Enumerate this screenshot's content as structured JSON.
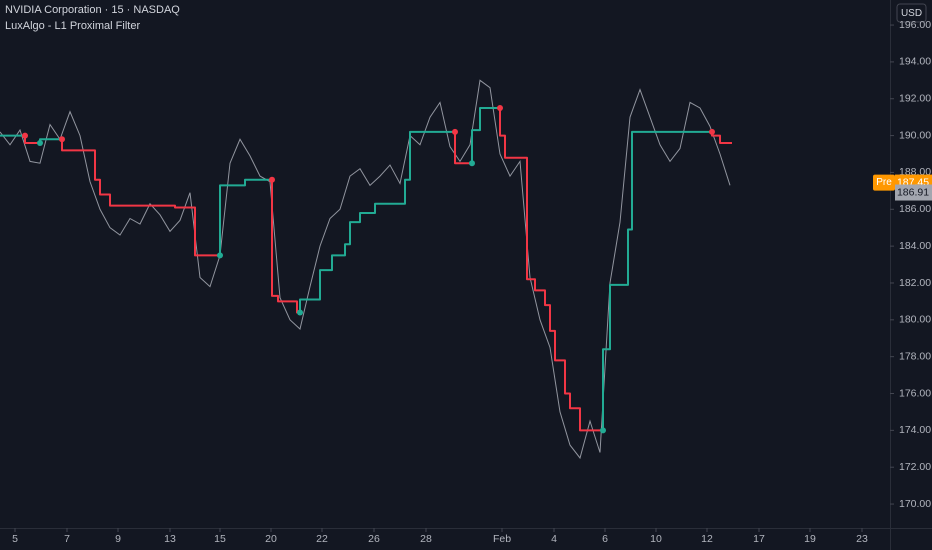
{
  "chart_data": {
    "type": "line",
    "title": "NVIDIA Corporation · 15 · NASDAQ",
    "subtitle": "LuxAlgo - L1 Proximal Filter",
    "currency": "USD",
    "pre_market": {
      "label": "Pre",
      "value": 187.45,
      "color": "#ff9800"
    },
    "last_price": 186.91,
    "xlim": [
      0,
      178
    ],
    "xticks": [
      {
        "value": 3,
        "label": "5"
      },
      {
        "value": 13.4,
        "label": "7"
      },
      {
        "value": 23.6,
        "label": "9"
      },
      {
        "value": 34,
        "label": "13"
      },
      {
        "value": 44,
        "label": "15"
      },
      {
        "value": 54.2,
        "label": "20"
      },
      {
        "value": 64.4,
        "label": "22"
      },
      {
        "value": 74.8,
        "label": "26"
      },
      {
        "value": 85.2,
        "label": "28"
      },
      {
        "value": 100.4,
        "label": "Feb"
      },
      {
        "value": 110.8,
        "label": "4"
      },
      {
        "value": 121,
        "label": "6"
      },
      {
        "value": 131.2,
        "label": "10"
      },
      {
        "value": 141.4,
        "label": "12"
      },
      {
        "value": 151.8,
        "label": "17"
      },
      {
        "value": 162,
        "label": "19"
      },
      {
        "value": 172.4,
        "label": "23"
      }
    ],
    "ylim": [
      168.7,
      197.36
    ],
    "yticks": [
      {
        "value": 170,
        "label": "170.00"
      },
      {
        "value": 172,
        "label": "172.00"
      },
      {
        "value": 174,
        "label": "174.00"
      },
      {
        "value": 176,
        "label": "176.00"
      },
      {
        "value": 178,
        "label": "178.00"
      },
      {
        "value": 180,
        "label": "180.00"
      },
      {
        "value": 182,
        "label": "182.00"
      },
      {
        "value": 184,
        "label": "184.00"
      },
      {
        "value": 186,
        "label": "186.00"
      },
      {
        "value": 188,
        "label": "188.00"
      },
      {
        "value": 190,
        "label": "190.00"
      },
      {
        "value": 192,
        "label": "192.00"
      },
      {
        "value": 194,
        "label": "194.00"
      },
      {
        "value": 196,
        "label": "196.00"
      }
    ],
    "grid": false,
    "series": [
      {
        "color": "#a8abb5",
        "x": [
          0,
          2,
          4,
          6,
          8,
          10,
          12,
          14,
          16,
          18,
          20,
          22,
          24,
          26,
          28,
          30,
          32,
          34,
          36,
          38,
          40,
          42,
          44,
          46,
          48,
          50,
          52,
          54,
          56,
          58,
          60,
          62,
          64,
          66,
          68,
          70,
          72,
          74,
          76,
          78,
          80,
          82,
          84,
          86,
          88,
          90,
          92,
          94,
          96,
          98,
          100,
          102,
          104,
          106,
          108,
          110,
          112,
          114,
          116,
          118,
          120,
          122,
          124,
          126,
          128,
          130,
          132,
          134,
          136,
          138,
          140,
          142,
          144,
          146
        ],
        "values": [
          190.2,
          189.5,
          190.3,
          188.6,
          188.5,
          190.6,
          189.8,
          191.3,
          190.0,
          187.5,
          186.0,
          185.0,
          184.6,
          185.5,
          185.2,
          186.3,
          185.7,
          184.8,
          185.4,
          186.9,
          182.3,
          181.8,
          183.5,
          188.5,
          189.8,
          188.9,
          187.8,
          187.5,
          181.2,
          180.0,
          179.5,
          181.8,
          184.0,
          185.5,
          186.0,
          187.8,
          188.2,
          187.3,
          187.8,
          188.4,
          187.4,
          190.0,
          189.5,
          191.0,
          191.8,
          189.4,
          188.6,
          189.5,
          193.0,
          192.6,
          189.0,
          187.8,
          188.6,
          182.3,
          180.0,
          178.5,
          175.0,
          173.2,
          172.5,
          174.5,
          172.8,
          182.0,
          185.3,
          191.0,
          192.5,
          191.0,
          189.5,
          188.6,
          189.3,
          191.8,
          191.5,
          190.5,
          189.0,
          187.3
        ]
      },
      {
        "color": "#22ab94",
        "line_shape": "step",
        "x": [
          0,
          5
        ],
        "values": [
          190.0,
          190.0
        ]
      },
      {
        "color": "#f23645",
        "line_shape": "step",
        "x": [
          5,
          8
        ],
        "values": [
          189.6,
          189.6
        ]
      },
      {
        "color": "#22ab94",
        "line_shape": "step",
        "x": [
          8,
          12.4
        ],
        "values": [
          189.8,
          189.8
        ]
      },
      {
        "color": "#f23645",
        "line_shape": "step",
        "x": [
          12.4,
          19,
          20,
          22,
          35,
          39,
          44
        ],
        "values": [
          189.2,
          187.6,
          186.8,
          186.2,
          186.1,
          183.5,
          183.5
        ]
      },
      {
        "color": "#22ab94",
        "line_shape": "step",
        "x": [
          44,
          49,
          54.4
        ],
        "values": [
          187.3,
          187.6,
          187.6
        ]
      },
      {
        "color": "#f23645",
        "line_shape": "step",
        "x": [
          54.4,
          55.6,
          59.4,
          60
        ],
        "values": [
          181.3,
          181.0,
          180.4,
          180.4
        ]
      },
      {
        "color": "#22ab94",
        "line_shape": "step",
        "x": [
          60,
          64,
          66.4,
          69,
          70,
          72,
          75,
          81,
          82,
          91
        ],
        "values": [
          181.1,
          182.7,
          183.5,
          184.1,
          185.3,
          185.8,
          186.3,
          187.6,
          190.2,
          190.2
        ]
      },
      {
        "color": "#f23645",
        "line_shape": "step",
        "x": [
          91,
          94.4
        ],
        "values": [
          188.5,
          188.5
        ]
      },
      {
        "color": "#22ab94",
        "line_shape": "step",
        "x": [
          94.4,
          96,
          100
        ],
        "values": [
          190.3,
          191.5,
          191.5
        ]
      },
      {
        "color": "#f23645",
        "line_shape": "step",
        "x": [
          100,
          101,
          105.4,
          107,
          109,
          110,
          111,
          113,
          114,
          116,
          120.6
        ],
        "values": [
          190.0,
          188.8,
          182.2,
          181.6,
          180.8,
          179.4,
          177.8,
          176.0,
          175.2,
          174.0,
          174.0
        ]
      },
      {
        "color": "#22ab94",
        "line_shape": "step",
        "x": [
          120.6,
          122,
          125.6,
          126.4,
          142.4
        ],
        "values": [
          178.4,
          181.9,
          184.9,
          190.2,
          190.2
        ]
      },
      {
        "color": "#f23645",
        "line_shape": "step",
        "x": [
          142.4,
          144,
          146.4
        ],
        "values": [
          190.0,
          189.6,
          189.6
        ]
      }
    ]
  }
}
